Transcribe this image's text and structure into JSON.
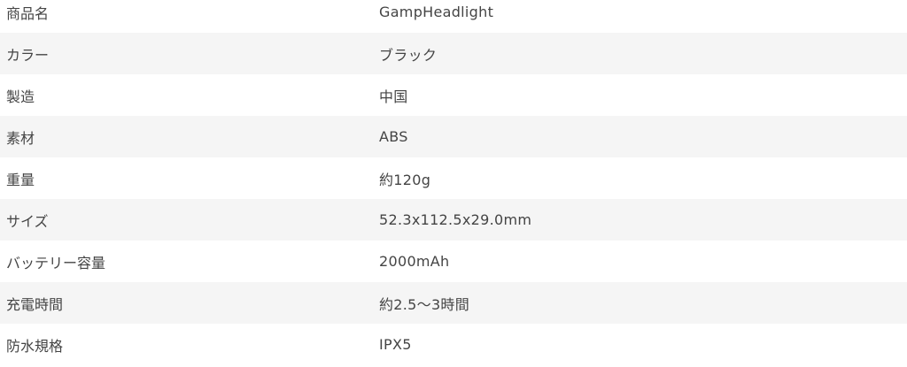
{
  "spec_table": {
    "rows": [
      {
        "label": "商品名",
        "value": "GampHeadlight"
      },
      {
        "label": "カラー",
        "value": "ブラック"
      },
      {
        "label": "製造",
        "value": "中国"
      },
      {
        "label": "素材",
        "value": "ABS"
      },
      {
        "label": "重量",
        "value": "約120g"
      },
      {
        "label": "サイズ",
        "value": "52.3x112.5x29.0mm"
      },
      {
        "label": "バッテリー容量",
        "value": "2000mAh"
      },
      {
        "label": "充電時間",
        "value": "約2.5〜3時間"
      },
      {
        "label": "防水規格",
        "value": "IPX5"
      }
    ]
  }
}
